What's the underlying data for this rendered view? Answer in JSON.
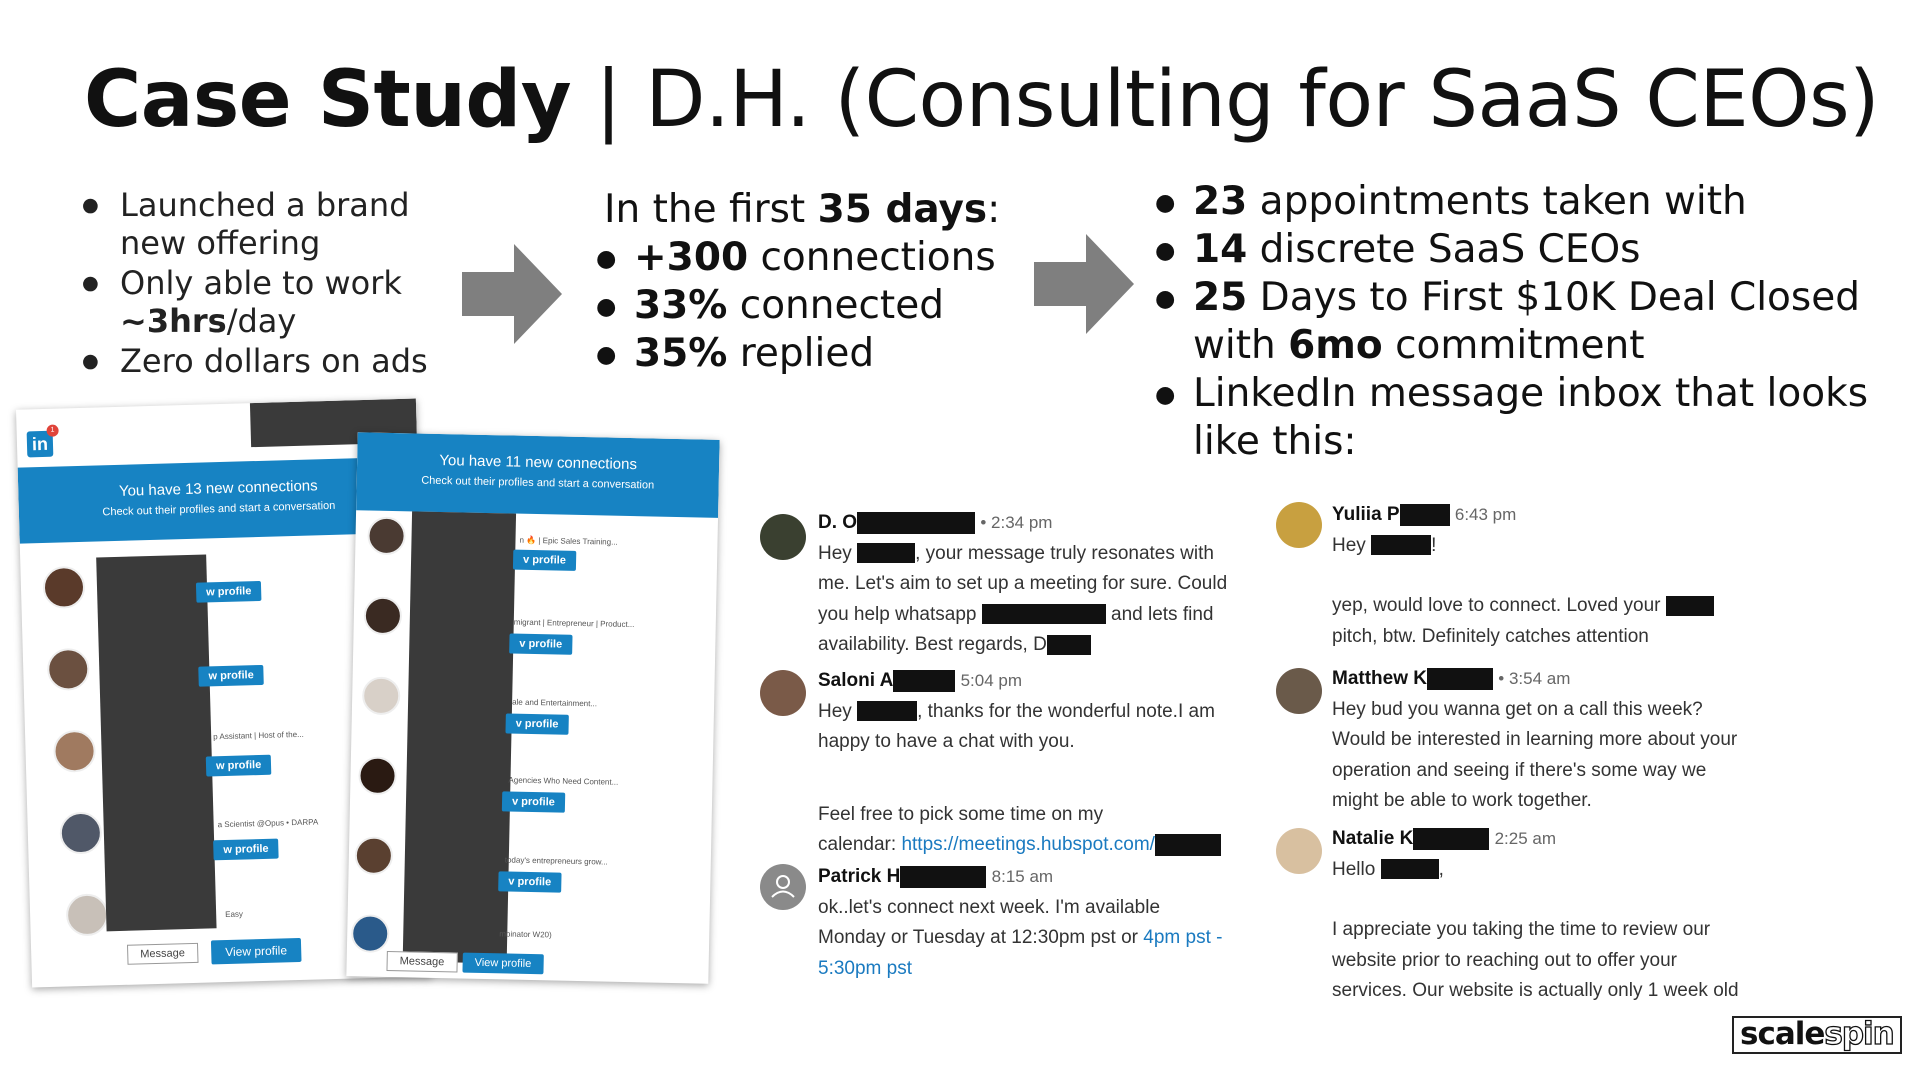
{
  "title": {
    "bold": "Case Study",
    "rest": " | D.H. (Consulting for SaaS CEOs)"
  },
  "col1": {
    "items": [
      {
        "a": "Launched a brand new offering"
      },
      {
        "a": "Only able to work ",
        "b": "~3hrs",
        "c": "/day"
      },
      {
        "a": "Zero dollars on ads"
      }
    ]
  },
  "col2": {
    "head_pre": "In the first ",
    "head_bold": "35 days",
    "head_post": ":",
    "items": [
      {
        "b": "+300",
        "c": " connections"
      },
      {
        "b": "33%",
        "c": " connected"
      },
      {
        "b": "35%",
        "c": " replied"
      }
    ]
  },
  "col3": {
    "items": [
      {
        "b": "23",
        "c": " appointments taken with"
      },
      {
        "b": "14",
        "c": " discrete SaaS CEOs"
      },
      {
        "b": "25",
        "c": " Days to First $10K Deal Closed with ",
        "d": "6mo",
        "e": " commitment"
      },
      {
        "c": "LinkedIn message inbox that looks like this:"
      }
    ]
  },
  "email1": {
    "banner_title": "You have 13 new connections",
    "banner_sub": "Check out their profiles and start a conversation",
    "logo": "in",
    "badge": "1",
    "view_profile": "w profile",
    "message": "Message",
    "view_profile_full": "View profile",
    "snippets": [
      "p Assistant | Host of the...",
      "a Scientist @Opus • DARPA",
      "Easy"
    ]
  },
  "email2": {
    "banner_title": "You have 11 new connections",
    "banner_sub": "Check out their profiles and start a conversation",
    "view_profile": "v profile",
    "message": "Message",
    "view_profile_full": "View profile",
    "snippets": [
      "n 🔥 | Epic Sales Training...",
      "migrant | Entrepreneur | Product...",
      "ale and Entertainment...",
      "Agencies Who Need Content...",
      "today's entrepreneurs grow...",
      "mbinator W20)"
    ]
  },
  "chat_left": [
    {
      "name": "D. O",
      "time": "• 2:34 pm",
      "lines": [
        "Hey ",
        ", your message truly resonates with",
        "me. Let's aim to set up a meeting for sure. Could",
        "you help whatsapp ",
        " and lets find",
        "availability. Best regards, D"
      ]
    },
    {
      "name": "Saloni A",
      "time": "5:04 pm",
      "lines": [
        "Hey ",
        ", thanks for the wonderful note.I am",
        "happy to have a chat with you.",
        "Feel free to pick some time on my",
        "calendar: ",
        "https://meetings.hubspot.com/"
      ]
    },
    {
      "name": "Patrick H",
      "time": "8:15 am",
      "lines": [
        "ok..let's connect next week.  I'm available",
        "Monday or Tuesday at 12:30pm pst or ",
        "4pm pst -",
        "5:30pm pst"
      ]
    }
  ],
  "chat_right": [
    {
      "name": "Yuliia P",
      "time": "6:43 pm",
      "lines": [
        "Hey ",
        "!",
        "yep, would love to connect. Loved your ",
        "pitch, btw. Definitely catches attention"
      ]
    },
    {
      "name": "Matthew K",
      "time": "• 3:54 am",
      "lines": [
        "Hey bud you wanna get on a call this week?",
        "Would be interested in learning more about your",
        "operation and seeing if there's some way we",
        "might be able to work together."
      ]
    },
    {
      "name": "Natalie K",
      "time": "2:25 am",
      "lines": [
        "Hello ",
        ",",
        "I appreciate you taking the time to review our",
        "website prior to reaching out to offer your",
        "services. Our website is actually only 1 week old"
      ]
    }
  ],
  "logo": {
    "part1": "scale",
    "part2": "spin"
  },
  "colors": {
    "linkedin_blue": "#1783c3",
    "arrow_gray": "#7f7f7f",
    "link_blue": "#1a7ac0"
  }
}
